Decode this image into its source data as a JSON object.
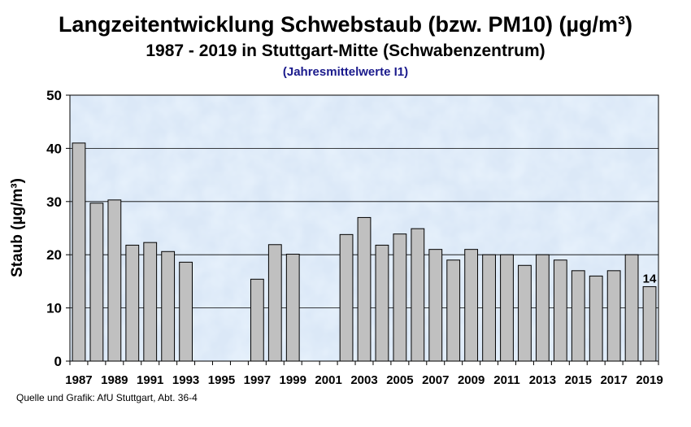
{
  "chart_data": {
    "type": "bar",
    "title": "Langzeitentwicklung Schwebstaub (bzw. PM10) (µg/m³)",
    "subtitle": "1987 - 2019 in Stuttgart-Mitte (Schwabenzentrum)",
    "subtitle2": "(Jahresmittelwerte I1)",
    "ylabel": "Staub (µg/m³)",
    "ylim": [
      0,
      50
    ],
    "yticks": [
      0,
      10,
      20,
      30,
      40,
      50
    ],
    "grid": true,
    "bar_color": "#c0c0c0",
    "categories": [
      "1987",
      "1988",
      "1989",
      "1990",
      "1991",
      "1992",
      "1993",
      "1994",
      "1995",
      "1996",
      "1997",
      "1998",
      "1999",
      "2000",
      "2001",
      "2002",
      "2003",
      "2004",
      "2005",
      "2006",
      "2007",
      "2008",
      "2009",
      "2010",
      "2011",
      "2012",
      "2013",
      "2014",
      "2015",
      "2016",
      "2017",
      "2018",
      "2019"
    ],
    "xtick_labels": [
      "1987",
      "1989",
      "1991",
      "1993",
      "1995",
      "1997",
      "1999",
      "2001",
      "2003",
      "2005",
      "2007",
      "2009",
      "2011",
      "2013",
      "2015",
      "2017",
      "2019"
    ],
    "values": [
      41,
      29.7,
      30.3,
      21.8,
      22.3,
      20.6,
      18.6,
      null,
      null,
      null,
      15.4,
      21.9,
      20.1,
      null,
      null,
      23.8,
      27,
      21.8,
      23.9,
      24.9,
      21,
      19,
      21,
      20,
      20,
      18,
      20,
      19,
      17,
      16,
      17,
      20,
      14
    ],
    "annotations": [
      {
        "year": "2019",
        "text": "14"
      }
    ]
  },
  "footer": {
    "source": "Quelle und Grafik: AfU Stuttgart, Abt. 36-4"
  }
}
